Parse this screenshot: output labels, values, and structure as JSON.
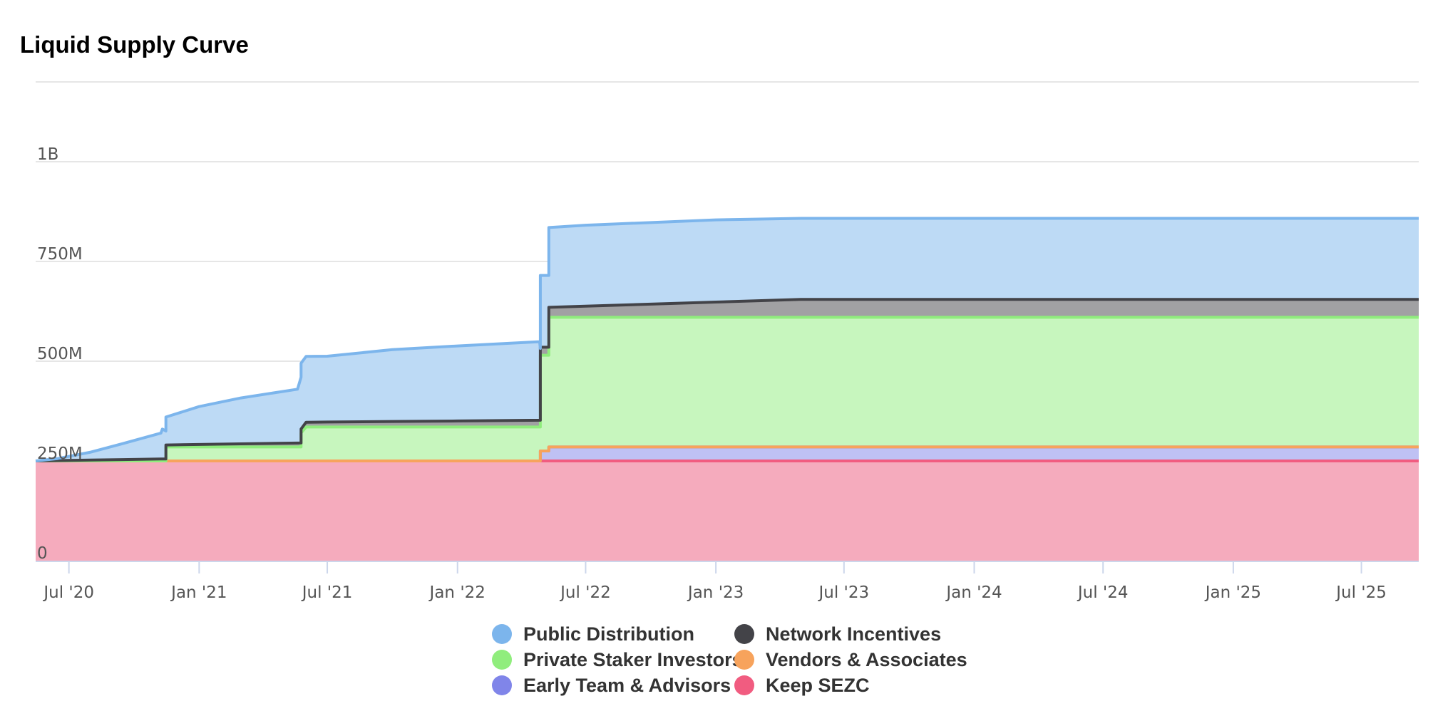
{
  "chart_data": {
    "type": "area",
    "stacked": true,
    "title": "Liquid Supply Curve",
    "xlabel": "",
    "ylabel": "",
    "ylim": [
      0,
      1200000000
    ],
    "xlim": [
      "2020-05-15",
      "2025-09-20"
    ],
    "y_ticks": [
      {
        "value": 0,
        "label": "0"
      },
      {
        "value": 250000000,
        "label": "250M"
      },
      {
        "value": 500000000,
        "label": "500M"
      },
      {
        "value": 750000000,
        "label": "750M"
      },
      {
        "value": 1000000000,
        "label": "1B"
      }
    ],
    "x_ticks": [
      {
        "date": "2020-07-01",
        "label": "Jul '20"
      },
      {
        "date": "2021-01-01",
        "label": "Jan '21"
      },
      {
        "date": "2021-07-01",
        "label": "Jul '21"
      },
      {
        "date": "2022-01-01",
        "label": "Jan '22"
      },
      {
        "date": "2022-07-01",
        "label": "Jul '22"
      },
      {
        "date": "2023-01-01",
        "label": "Jan '23"
      },
      {
        "date": "2023-07-01",
        "label": "Jul '23"
      },
      {
        "date": "2024-01-01",
        "label": "Jan '24"
      },
      {
        "date": "2024-07-01",
        "label": "Jul '24"
      },
      {
        "date": "2025-01-01",
        "label": "Jan '25"
      },
      {
        "date": "2025-07-01",
        "label": "Jul '25"
      }
    ],
    "grid": true,
    "legend_position": "bottom",
    "series": [
      {
        "name": "Keep SEZC",
        "color": "#f15c80",
        "fill": "#f5abbd",
        "points": [
          [
            "2020-05-15",
            250000000
          ],
          [
            "2025-09-20",
            250000000
          ]
        ]
      },
      {
        "name": "Early Team & Advisors",
        "color": "#8085e9",
        "fill": "#bfc1f4",
        "points": [
          [
            "2020-05-15",
            0
          ],
          [
            "2022-04-28",
            0
          ],
          [
            "2022-04-28",
            25000000
          ],
          [
            "2022-05-10",
            25000000
          ],
          [
            "2022-05-10",
            35000000
          ],
          [
            "2025-09-20",
            35000000
          ]
        ]
      },
      {
        "name": "Vendors & Associates",
        "color": "#f7a35c",
        "fill": "#fbd1ad",
        "points": [
          [
            "2020-05-15",
            0
          ],
          [
            "2025-09-20",
            0
          ]
        ]
      },
      {
        "name": "Private Staker Investors",
        "color": "#90ed7d",
        "fill": "#c7f6be",
        "points": [
          [
            "2020-05-15",
            0
          ],
          [
            "2020-11-15",
            0
          ],
          [
            "2020-11-15",
            35000000
          ],
          [
            "2021-05-25",
            35000000
          ],
          [
            "2021-05-25",
            70000000
          ],
          [
            "2021-06-01",
            85000000
          ],
          [
            "2022-04-28",
            85000000
          ],
          [
            "2022-04-28",
            240000000
          ],
          [
            "2022-05-10",
            240000000
          ],
          [
            "2022-05-10",
            325000000
          ],
          [
            "2025-09-20",
            325000000
          ]
        ]
      },
      {
        "name": "Network Incentives",
        "color": "#434348",
        "fill": "#a1a1a3",
        "points": [
          [
            "2020-05-15",
            0
          ],
          [
            "2020-11-15",
            5000000
          ],
          [
            "2021-05-25",
            10000000
          ],
          [
            "2021-06-01",
            12000000
          ],
          [
            "2022-04-28",
            17000000
          ],
          [
            "2022-04-28",
            20000000
          ],
          [
            "2022-05-10",
            20000000
          ],
          [
            "2022-05-10",
            25000000
          ],
          [
            "2023-05-01",
            45000000
          ],
          [
            "2025-09-20",
            45000000
          ]
        ]
      },
      {
        "name": "Public Distribution",
        "color": "#7cb5ec",
        "fill": "#bddaf5",
        "points": [
          [
            "2020-05-15",
            0
          ],
          [
            "2020-06-15",
            5000000
          ],
          [
            "2020-08-01",
            20000000
          ],
          [
            "2020-09-15",
            40000000
          ],
          [
            "2020-11-08",
            65000000
          ],
          [
            "2020-11-10",
            75000000
          ],
          [
            "2020-11-15",
            70000000
          ],
          [
            "2021-01-01",
            95000000
          ],
          [
            "2021-03-01",
            115000000
          ],
          [
            "2021-05-20",
            135000000
          ],
          [
            "2021-05-25",
            165000000
          ],
          [
            "2021-07-01",
            165000000
          ],
          [
            "2021-10-01",
            180000000
          ],
          [
            "2022-01-01",
            188000000
          ],
          [
            "2022-04-27",
            197000000
          ],
          [
            "2022-04-28",
            180000000
          ],
          [
            "2022-05-10",
            180000000
          ],
          [
            "2022-05-10",
            200000000
          ],
          [
            "2022-07-01",
            203000000
          ],
          [
            "2023-01-01",
            206000000
          ],
          [
            "2023-05-01",
            203000000
          ],
          [
            "2025-09-20",
            203000000
          ]
        ]
      }
    ]
  },
  "legend": {
    "items": [
      {
        "label": "Public Distribution",
        "color": "#7cb5ec"
      },
      {
        "label": "Network Incentives",
        "color": "#434348"
      },
      {
        "label": "Private Staker Investors",
        "color": "#90ed7d"
      },
      {
        "label": "Vendors & Associates",
        "color": "#f7a35c"
      },
      {
        "label": "Early Team & Advisors",
        "color": "#8085e9"
      },
      {
        "label": "Keep SEZC",
        "color": "#f15c80"
      }
    ]
  }
}
